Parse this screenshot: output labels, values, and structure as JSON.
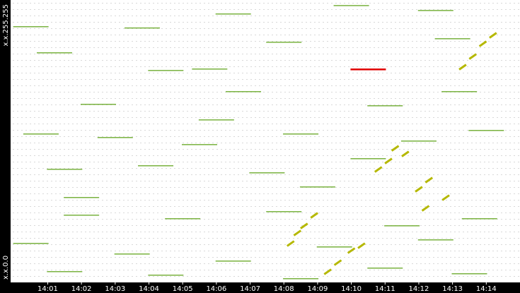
{
  "chart_data": {
    "type": "scatter",
    "xlim": [
      -0.1,
      15.0
    ],
    "xticks": [
      {
        "value": 1,
        "label": "14:01"
      },
      {
        "value": 2,
        "label": "14:02"
      },
      {
        "value": 3,
        "label": "14:03"
      },
      {
        "value": 4,
        "label": "14:04"
      },
      {
        "value": 5,
        "label": "14:05"
      },
      {
        "value": 6,
        "label": "14:06"
      },
      {
        "value": 7,
        "label": "14:07"
      },
      {
        "value": 8,
        "label": "14:08"
      },
      {
        "value": 9,
        "label": "14:09"
      },
      {
        "value": 10,
        "label": "14:10"
      },
      {
        "value": 11,
        "label": "14:11"
      },
      {
        "value": 12,
        "label": "14:12"
      },
      {
        "value": 13,
        "label": "14:13"
      },
      {
        "value": 14,
        "label": "14:14"
      }
    ],
    "ylim": [
      0,
      65535
    ],
    "yticks": [
      {
        "value": 0,
        "label": "x.x.0.0"
      },
      {
        "value": 65535,
        "label": "x.x.255.255"
      }
    ],
    "series": [
      {
        "color": "#6aaa2a",
        "x": [
          0.5,
          3.8,
          6.5,
          10,
          12.5,
          1.2,
          8,
          13,
          4.5,
          2.5,
          6.8,
          11,
          0.8,
          3,
          5.5,
          8.5,
          12,
          14,
          1.5,
          4.2,
          7.5,
          10.5,
          2,
          5,
          8,
          11.5,
          13.8,
          0.5,
          3.5,
          6.5,
          9.5,
          12.5,
          1.5,
          4.5,
          8.5,
          11,
          13.5,
          5.8,
          2,
          9,
          6,
          13.2
        ],
        "y": [
          59300,
          59000,
          62250,
          64200,
          63060,
          53240,
          55690,
          56510,
          49140,
          41280,
          44230,
          40950,
          34400,
          33580,
          31940,
          34400,
          32760,
          35220,
          26210,
          27030,
          25390,
          28670,
          15560,
          14740,
          16380,
          13100,
          14740,
          9010,
          6550,
          4910,
          8190,
          9830,
          2460,
          1640,
          820,
          3280,
          1970,
          49470,
          19660,
          22110,
          37670,
          44230
        ]
      },
      {
        "color": "#b5b800",
        "x": [
          8.2,
          8.4,
          8.6,
          8.9,
          9.3,
          9.6,
          10,
          10.3,
          10.8,
          11.1,
          11.3,
          11.6,
          12,
          12.3,
          12.2,
          12.8,
          13.3,
          13.6,
          13.9,
          14.2
        ],
        "y": [
          9010,
          11470,
          13100,
          15560,
          2460,
          4590,
          7370,
          8520,
          26210,
          28170,
          31120,
          29810,
          21620,
          23750,
          17200,
          19660,
          49960,
          52420,
          55360,
          57330
        ]
      },
      {
        "color": "#e00000",
        "x": [
          10.5
        ],
        "y": [
          49470
        ]
      }
    ]
  }
}
